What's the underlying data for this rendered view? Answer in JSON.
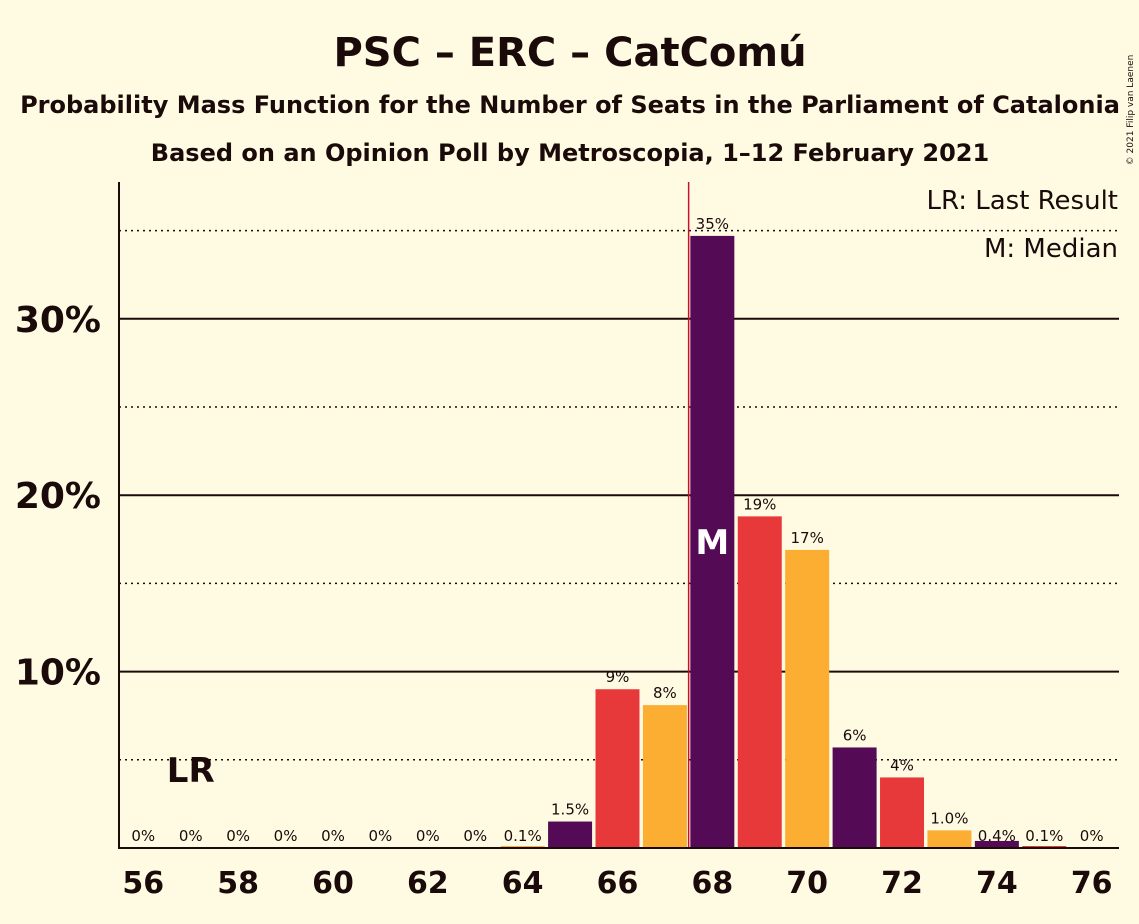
{
  "chart_data": {
    "type": "bar",
    "title": "PSC – ERC – CatComú",
    "subtitle": "Probability Mass Function for the Number of Seats in the Parliament of Catalonia",
    "subtitle2": "Based on an Opinion Poll by Metroscopia, 1–12 February 2021",
    "copyright": "© 2021 Filip van Laenen",
    "legend": [
      "LR: Last Result",
      "M: Median"
    ],
    "legend_position": "top-right",
    "x": [
      56,
      57,
      58,
      59,
      60,
      61,
      62,
      63,
      64,
      65,
      66,
      67,
      68,
      69,
      70,
      71,
      72,
      73,
      74,
      75,
      76
    ],
    "values": [
      0,
      0,
      0,
      0,
      0,
      0,
      0,
      0,
      0.1,
      1.5,
      9.0,
      8.1,
      34.7,
      18.8,
      16.9,
      5.7,
      4.0,
      1.0,
      0.4,
      0.1,
      0
    ],
    "labels": [
      "0%",
      "0%",
      "0%",
      "0%",
      "0%",
      "0%",
      "0%",
      "0%",
      "0.1%",
      "1.5%",
      "9%",
      "8%",
      "35%",
      "19%",
      "17%",
      "6%",
      "4%",
      "1.0%",
      "0.4%",
      "0.1%",
      "0%"
    ],
    "bar_colors": [
      "#550a55",
      "#e8393a",
      "#fbae32"
    ],
    "xticks": [
      56,
      58,
      60,
      62,
      64,
      66,
      68,
      70,
      72,
      74,
      76
    ],
    "yticks": [
      10,
      20,
      30
    ],
    "ytick_labels": [
      "10%",
      "20%",
      "30%"
    ],
    "dotted_gridlines": [
      5,
      15,
      25,
      35
    ],
    "ylim": [
      0,
      38
    ],
    "last_result": {
      "seats": 57,
      "label": "LR"
    },
    "median": {
      "seats": 68,
      "label": "M"
    },
    "median_line_color": "#c8102e"
  }
}
